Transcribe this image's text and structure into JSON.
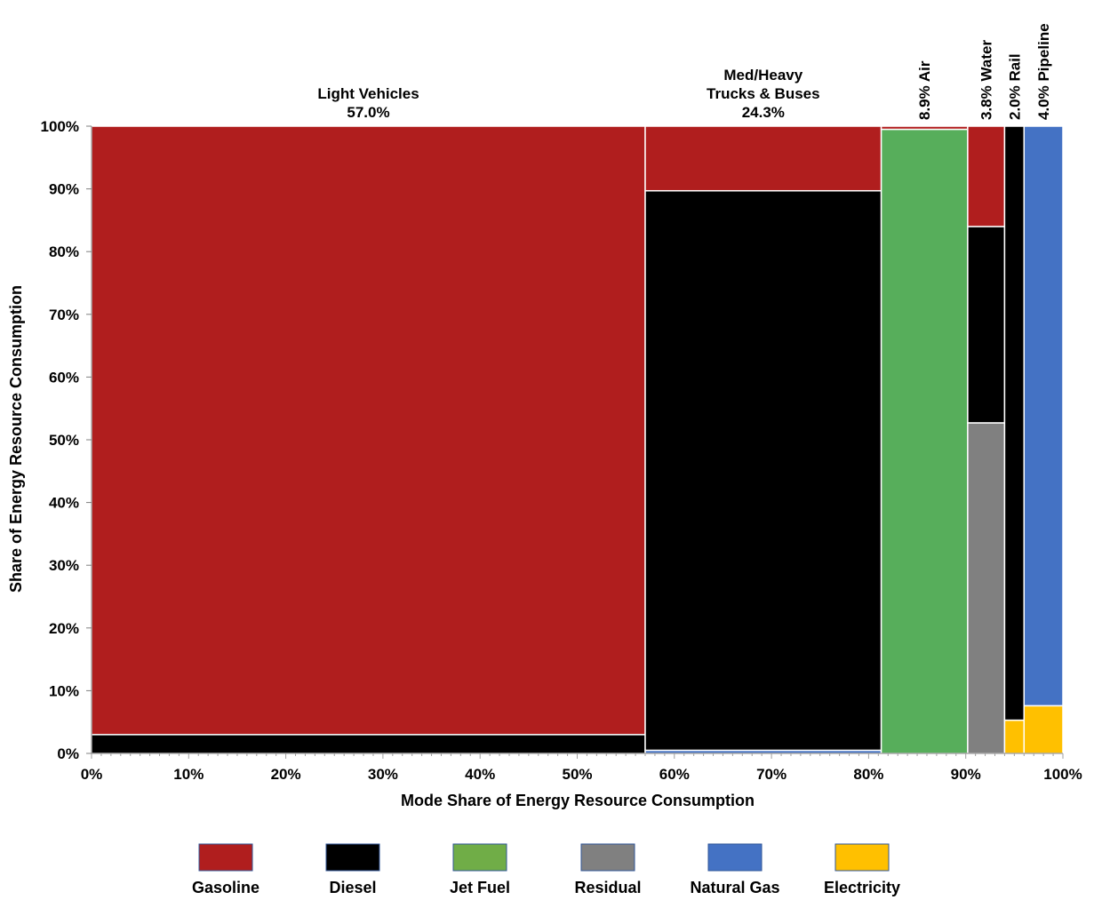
{
  "chart_data": {
    "type": "mosaic",
    "xlabel": "Mode Share of Energy Resource Consumption",
    "ylabel": "Share of Energy Resource Consumption",
    "xlim": [
      0,
      100
    ],
    "ylim": [
      0,
      100
    ],
    "x_ticks": [
      "0%",
      "10%",
      "20%",
      "30%",
      "40%",
      "50%",
      "60%",
      "70%",
      "80%",
      "90%",
      "100%"
    ],
    "y_ticks": [
      "0%",
      "10%",
      "20%",
      "30%",
      "40%",
      "50%",
      "60%",
      "70%",
      "80%",
      "90%",
      "100%"
    ],
    "fuels": [
      {
        "name": "Gasoline",
        "color": "#B01E1E"
      },
      {
        "name": "Diesel",
        "color": "#000000"
      },
      {
        "name": "Jet Fuel",
        "color": "#57AE5B"
      },
      {
        "name": "Residual",
        "color": "#808080"
      },
      {
        "name": "Natural Gas",
        "color": "#4472C4"
      },
      {
        "name": "Electricity",
        "color": "#FFC000"
      }
    ],
    "legend_swatch_colors": [
      "#B01E1E",
      "#000000",
      "#70AD47",
      "#808080",
      "#4472C4",
      "#FFC000"
    ],
    "modes": [
      {
        "label_lines": [
          "Light Vehicles",
          "57.0%"
        ],
        "label_orientation": "horizontal",
        "share": 57.0,
        "segments": [
          {
            "fuel": "Diesel",
            "value": 3.0
          },
          {
            "fuel": "Gasoline",
            "value": 97.0
          }
        ]
      },
      {
        "label_lines": [
          "Med/Heavy",
          "Trucks & Buses",
          "24.3%"
        ],
        "label_orientation": "horizontal",
        "share": 24.3,
        "segments": [
          {
            "fuel": "Natural Gas",
            "value": 0.5
          },
          {
            "fuel": "Diesel",
            "value": 89.2
          },
          {
            "fuel": "Gasoline",
            "value": 10.3
          }
        ]
      },
      {
        "label_lines": [
          "8.9% Air"
        ],
        "label_orientation": "vertical",
        "share": 8.9,
        "segments": [
          {
            "fuel": "Jet Fuel",
            "value": 99.5
          },
          {
            "fuel": "Gasoline",
            "value": 0.5
          }
        ]
      },
      {
        "label_lines": [
          "3.8% Water"
        ],
        "label_orientation": "vertical",
        "share": 3.8,
        "segments": [
          {
            "fuel": "Residual",
            "value": 52.7
          },
          {
            "fuel": "Diesel",
            "value": 31.3
          },
          {
            "fuel": "Gasoline",
            "value": 16.0
          }
        ]
      },
      {
        "label_lines": [
          "2.0% Rail"
        ],
        "label_orientation": "vertical",
        "share": 2.0,
        "segments": [
          {
            "fuel": "Electricity",
            "value": 5.3
          },
          {
            "fuel": "Diesel",
            "value": 94.7
          }
        ]
      },
      {
        "label_lines": [
          "4.0% Pipeline"
        ],
        "label_orientation": "vertical",
        "share": 4.0,
        "segments": [
          {
            "fuel": "Electricity",
            "value": 7.6
          },
          {
            "fuel": "Natural Gas",
            "value": 92.4
          }
        ]
      }
    ],
    "legend_entries": [
      "Gasoline",
      "Diesel",
      "Jet Fuel",
      "Residual",
      "Natural Gas",
      "Electricity"
    ],
    "legend_position": "bottom",
    "grid": false
  }
}
